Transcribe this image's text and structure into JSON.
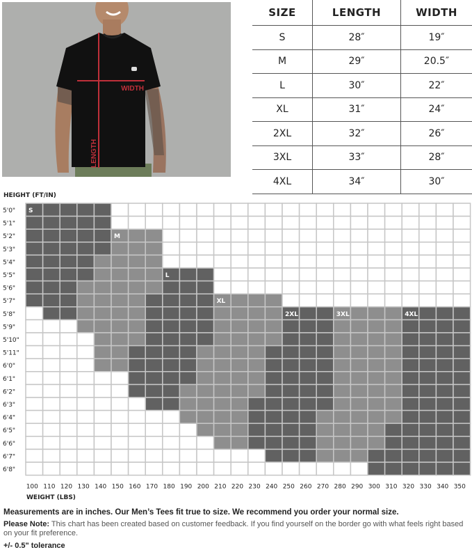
{
  "photo": {
    "width_label": "WIDTH",
    "length_label": "LENGTH",
    "line_color": "#c0303a"
  },
  "size_table": {
    "headers": [
      "SIZE",
      "LENGTH",
      "WIDTH"
    ],
    "rows": [
      [
        "S",
        "28″",
        "19″"
      ],
      [
        "M",
        "29″",
        "20.5″"
      ],
      [
        "L",
        "30″",
        "22″"
      ],
      [
        "XL",
        "31″",
        "24″"
      ],
      [
        "2XL",
        "32″",
        "26″"
      ],
      [
        "3XL",
        "33″",
        "28″"
      ],
      [
        "4XL",
        "34″",
        "30″"
      ]
    ]
  },
  "chart_data": {
    "type": "heatmap",
    "ylabel": "HEIGHT (FT/IN)",
    "xlabel": "WEIGHT (LBS)",
    "x_ticks": [
      100,
      110,
      120,
      130,
      140,
      150,
      160,
      170,
      180,
      190,
      200,
      210,
      220,
      230,
      240,
      250,
      260,
      270,
      280,
      290,
      300,
      310,
      320,
      330,
      340,
      350
    ],
    "y_ticks": [
      "5'0\"",
      "5'1\"",
      "5'2\"",
      "5'3\"",
      "5'4\"",
      "5'5\"",
      "5'6\"",
      "5'7\"",
      "5'8\"",
      "5'9\"",
      "5'10\"",
      "5'11\"",
      "6'0\"",
      "6'1\"",
      "6'2\"",
      "6'3\"",
      "6'4\"",
      "6'5\"",
      "6'6\"",
      "6'7\"",
      "6'8\""
    ],
    "size_colors": {
      "S": "#616161",
      "M": "#8e8e8e",
      "L": "#616161",
      "XL": "#8e8e8e",
      "2XL": "#616161",
      "3XL": "#8e8e8e",
      "4XL": "#616161"
    },
    "rows": [
      [
        [
          "S",
          100,
          140
        ]
      ],
      [
        [
          "S",
          100,
          140
        ]
      ],
      [
        [
          "S",
          100,
          140
        ],
        [
          "M",
          150,
          170
        ]
      ],
      [
        [
          "S",
          100,
          140
        ],
        [
          "M",
          150,
          170
        ]
      ],
      [
        [
          "S",
          100,
          130
        ],
        [
          "M",
          140,
          170
        ]
      ],
      [
        [
          "S",
          100,
          130
        ],
        [
          "M",
          140,
          170
        ],
        [
          "L",
          180,
          200
        ]
      ],
      [
        [
          "S",
          100,
          120
        ],
        [
          "M",
          130,
          170
        ],
        [
          "L",
          180,
          200
        ]
      ],
      [
        [
          "S",
          100,
          120
        ],
        [
          "M",
          130,
          160
        ],
        [
          "L",
          170,
          200
        ],
        [
          "XL",
          210,
          240
        ]
      ],
      [
        [
          "S",
          110,
          120
        ],
        [
          "M",
          130,
          160
        ],
        [
          "L",
          170,
          200
        ],
        [
          "XL",
          210,
          240
        ],
        [
          "2XL",
          250,
          270
        ],
        [
          "3XL",
          280,
          310
        ],
        [
          "4XL",
          320,
          350
        ]
      ],
      [
        [
          "M",
          130,
          160
        ],
        [
          "L",
          170,
          200
        ],
        [
          "XL",
          210,
          240
        ],
        [
          "2XL",
          250,
          270
        ],
        [
          "3XL",
          280,
          310
        ],
        [
          "4XL",
          320,
          350
        ]
      ],
      [
        [
          "M",
          140,
          160
        ],
        [
          "L",
          170,
          200
        ],
        [
          "XL",
          210,
          240
        ],
        [
          "2XL",
          250,
          270
        ],
        [
          "3XL",
          280,
          310
        ],
        [
          "4XL",
          320,
          350
        ]
      ],
      [
        [
          "M",
          140,
          150
        ],
        [
          "L",
          160,
          190
        ],
        [
          "XL",
          200,
          230
        ],
        [
          "2XL",
          240,
          270
        ],
        [
          "3XL",
          280,
          310
        ],
        [
          "4XL",
          320,
          350
        ]
      ],
      [
        [
          "M",
          140,
          150
        ],
        [
          "L",
          160,
          190
        ],
        [
          "XL",
          200,
          230
        ],
        [
          "2XL",
          240,
          270
        ],
        [
          "3XL",
          280,
          310
        ],
        [
          "4XL",
          320,
          350
        ]
      ],
      [
        [
          "L",
          160,
          190
        ],
        [
          "XL",
          200,
          230
        ],
        [
          "2XL",
          240,
          270
        ],
        [
          "3XL",
          280,
          310
        ],
        [
          "4XL",
          320,
          350
        ]
      ],
      [
        [
          "L",
          160,
          180
        ],
        [
          "XL",
          190,
          230
        ],
        [
          "2XL",
          240,
          270
        ],
        [
          "3XL",
          280,
          310
        ],
        [
          "4XL",
          320,
          350
        ]
      ],
      [
        [
          "L",
          170,
          180
        ],
        [
          "XL",
          190,
          220
        ],
        [
          "2XL",
          230,
          270
        ],
        [
          "3XL",
          280,
          310
        ],
        [
          "4XL",
          320,
          350
        ]
      ],
      [
        [
          "XL",
          190,
          220
        ],
        [
          "2XL",
          230,
          260
        ],
        [
          "3XL",
          270,
          310
        ],
        [
          "4XL",
          320,
          350
        ]
      ],
      [
        [
          "XL",
          200,
          220
        ],
        [
          "2XL",
          230,
          260
        ],
        [
          "3XL",
          270,
          300
        ],
        [
          "4XL",
          310,
          350
        ]
      ],
      [
        [
          "XL",
          210,
          220
        ],
        [
          "2XL",
          230,
          260
        ],
        [
          "3XL",
          270,
          300
        ],
        [
          "4XL",
          310,
          350
        ]
      ],
      [
        [
          "2XL",
          240,
          260
        ],
        [
          "3XL",
          270,
          290
        ],
        [
          "4XL",
          300,
          350
        ]
      ],
      [
        [
          "4XL",
          300,
          350
        ]
      ]
    ]
  },
  "notes": {
    "measurements": "Measurements are in inches. Our Men’s Tees fit true to size. We recommend you order your normal size.",
    "please_note_label": "Please Note:",
    "please_note_text": " This chart has been created based on customer feedback. If you find yourself on the border go with what feels right based on your fit preference.",
    "tolerance": "+/- 0.5\" tolerance"
  }
}
